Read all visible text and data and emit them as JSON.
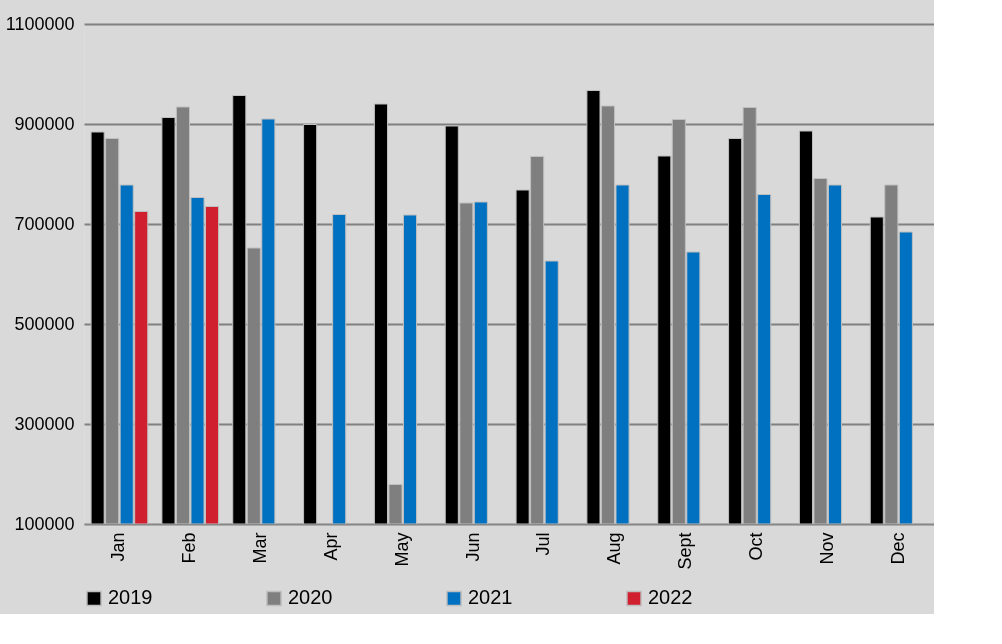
{
  "chart_data": {
    "type": "bar",
    "categories": [
      "Jan",
      "Feb",
      "Mar",
      "Apr",
      "May",
      "Jun",
      "Jul",
      "Aug",
      "Sept",
      "Oct",
      "Nov",
      "Dec"
    ],
    "series": [
      {
        "name": "2019",
        "color": "#000000",
        "values": [
          884000,
          913000,
          957000,
          899000,
          940000,
          896000,
          768000,
          967000,
          836000,
          871000,
          886000,
          714000
        ]
      },
      {
        "name": "2020",
        "color": "#7f7f7f",
        "values": [
          871000,
          934000,
          652000,
          null,
          179000,
          742000,
          835000,
          936000,
          909000,
          933000,
          791000,
          778000
        ]
      },
      {
        "name": "2021",
        "color": "#0070c0",
        "values": [
          778000,
          753000,
          910000,
          719000,
          718000,
          744000,
          626000,
          778000,
          644000,
          759000,
          778000,
          684000
        ]
      },
      {
        "name": "2022",
        "color": "#d01f2f",
        "values": [
          725000,
          735000,
          null,
          null,
          null,
          null,
          null,
          null,
          null,
          null,
          null,
          null
        ]
      }
    ],
    "ylim": [
      100000,
      1100000
    ],
    "yticks": [
      100000,
      300000,
      500000,
      700000,
      900000,
      1100000
    ],
    "grid": "y",
    "legend": "bottom"
  }
}
